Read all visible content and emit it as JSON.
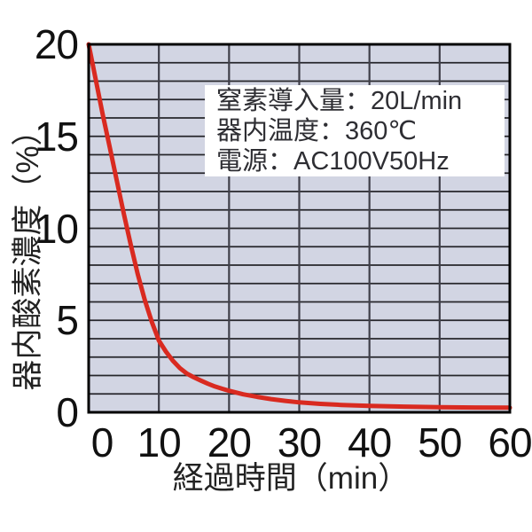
{
  "chart_data": {
    "type": "line",
    "title": "",
    "xlabel": "経過時間（min）",
    "ylabel": "器内酸素濃度（%）",
    "xlim": [
      0,
      60
    ],
    "ylim": [
      0,
      20
    ],
    "x_ticks": [
      0,
      10,
      20,
      30,
      40,
      50,
      60
    ],
    "y_ticks": [
      0,
      5,
      10,
      15,
      20
    ],
    "x_grid_step": 10,
    "y_grid_step": 1,
    "grid": "on",
    "legend_position": "none",
    "colors": {
      "plot_background": "#d2d5e3",
      "grid_horizontal": "#26262b",
      "grid_vertical": "#3f3f49",
      "plot_border": "#000000",
      "curve": "#d92a20",
      "text": "#222222",
      "annotation_background": "#ffffff"
    },
    "series": [
      {
        "name": "器内酸素濃度",
        "color": "#d92a20",
        "stroke_width": 5,
        "points": [
          [
            0,
            20
          ],
          [
            1,
            18.1
          ],
          [
            2,
            16.2
          ],
          [
            3,
            14.4
          ],
          [
            4,
            12.6
          ],
          [
            5,
            10.8
          ],
          [
            6,
            9.1
          ],
          [
            7,
            7.5
          ],
          [
            8,
            6.1
          ],
          [
            9,
            4.9
          ],
          [
            10,
            3.9
          ],
          [
            11,
            3.3
          ],
          [
            12,
            2.8
          ],
          [
            13,
            2.4
          ],
          [
            14,
            2.1
          ],
          [
            15,
            1.9
          ],
          [
            16,
            1.72
          ],
          [
            17,
            1.55
          ],
          [
            18,
            1.4
          ],
          [
            19,
            1.28
          ],
          [
            20,
            1.17
          ],
          [
            22,
            0.98
          ],
          [
            24,
            0.84
          ],
          [
            26,
            0.72
          ],
          [
            28,
            0.62
          ],
          [
            30,
            0.54
          ],
          [
            33,
            0.46
          ],
          [
            36,
            0.4
          ],
          [
            40,
            0.35
          ],
          [
            45,
            0.31
          ],
          [
            50,
            0.28
          ],
          [
            55,
            0.26
          ],
          [
            60,
            0.25
          ]
        ]
      }
    ],
    "annotation": {
      "lines": [
        "窒素導入量：20L/min",
        "器内温度：360℃",
        "電源：AC100V50Hz"
      ]
    }
  }
}
